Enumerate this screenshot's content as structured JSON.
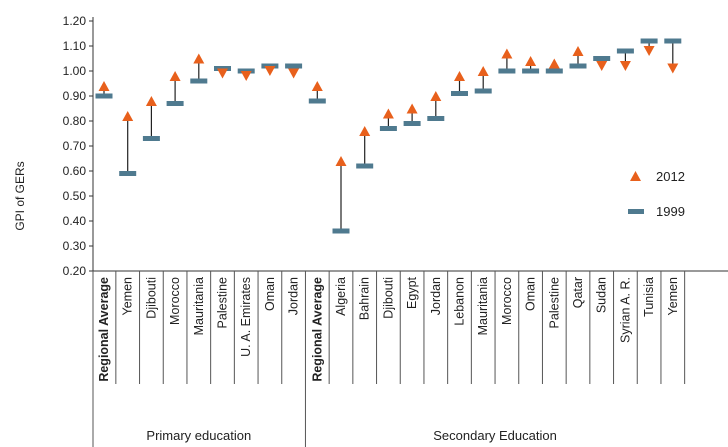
{
  "chart_data": {
    "type": "scatter",
    "ylabel": "GPI of GERs",
    "ylim": [
      0.2,
      1.2
    ],
    "yticks": [
      "0.20",
      "0.30",
      "0.40",
      "0.50",
      "0.60",
      "0.70",
      "0.80",
      "0.90",
      "1.00",
      "1.10",
      "1.20"
    ],
    "grid": false,
    "legend_position": "right",
    "groups": [
      "Primary education",
      "Secondary Education"
    ],
    "series": [
      {
        "name": "2012",
        "marker": "triangle",
        "color": "#e8601c"
      },
      {
        "name": "1999",
        "marker": "dash",
        "color": "#4f7a8f"
      }
    ],
    "points": [
      {
        "label": "Regional Average",
        "bold": true,
        "group": 0,
        "v1999": 0.9,
        "v2012": 0.94
      },
      {
        "label": "Yemen",
        "bold": false,
        "group": 0,
        "v1999": 0.59,
        "v2012": 0.82
      },
      {
        "label": "Djibouti",
        "bold": false,
        "group": 0,
        "v1999": 0.73,
        "v2012": 0.88
      },
      {
        "label": "Morocco",
        "bold": false,
        "group": 0,
        "v1999": 0.87,
        "v2012": 0.98
      },
      {
        "label": "Mauritania",
        "bold": false,
        "group": 0,
        "v1999": 0.96,
        "v2012": 1.05
      },
      {
        "label": "Palestine",
        "bold": false,
        "group": 0,
        "v1999": 1.01,
        "v2012": 0.99
      },
      {
        "label": "U. A. Emirates",
        "bold": false,
        "group": 0,
        "v1999": 1.0,
        "v2012": 0.98
      },
      {
        "label": "Oman",
        "bold": false,
        "group": 0,
        "v1999": 1.02,
        "v2012": 1.0
      },
      {
        "label": "Jordan",
        "bold": false,
        "group": 0,
        "v1999": 1.02,
        "v2012": 0.99
      },
      {
        "label": "Regional Average",
        "bold": true,
        "group": 1,
        "v1999": 0.88,
        "v2012": 0.94
      },
      {
        "label": "Algeria",
        "bold": false,
        "group": 1,
        "v1999": 0.36,
        "v2012": 0.64
      },
      {
        "label": "Bahrain",
        "bold": false,
        "group": 1,
        "v1999": 0.62,
        "v2012": 0.76
      },
      {
        "label": "Djibouti",
        "bold": false,
        "group": 1,
        "v1999": 0.77,
        "v2012": 0.83
      },
      {
        "label": "Egypt",
        "bold": false,
        "group": 1,
        "v1999": 0.79,
        "v2012": 0.85
      },
      {
        "label": "Jordan",
        "bold": false,
        "group": 1,
        "v1999": 0.81,
        "v2012": 0.9
      },
      {
        "label": "Lebanon",
        "bold": false,
        "group": 1,
        "v1999": 0.91,
        "v2012": 0.98
      },
      {
        "label": "Mauritania",
        "bold": false,
        "group": 1,
        "v1999": 0.92,
        "v2012": 1.0
      },
      {
        "label": "Morocco",
        "bold": false,
        "group": 1,
        "v1999": 1.0,
        "v2012": 1.07
      },
      {
        "label": "Oman",
        "bold": false,
        "group": 1,
        "v1999": 1.0,
        "v2012": 1.04
      },
      {
        "label": "Palestine",
        "bold": false,
        "group": 1,
        "v1999": 1.0,
        "v2012": 1.03
      },
      {
        "label": "Qatar",
        "bold": false,
        "group": 1,
        "v1999": 1.02,
        "v2012": 1.08
      },
      {
        "label": "Sudan",
        "bold": false,
        "group": 1,
        "v1999": 1.05,
        "v2012": 1.02
      },
      {
        "label": "Syrian A. R.",
        "bold": false,
        "group": 1,
        "v1999": 1.08,
        "v2012": 1.02
      },
      {
        "label": "Tunisia",
        "bold": false,
        "group": 1,
        "v1999": 1.12,
        "v2012": 1.08
      },
      {
        "label": "Yemen",
        "bold": false,
        "group": 1,
        "v1999": 1.12,
        "v2012": 1.01
      }
    ]
  }
}
